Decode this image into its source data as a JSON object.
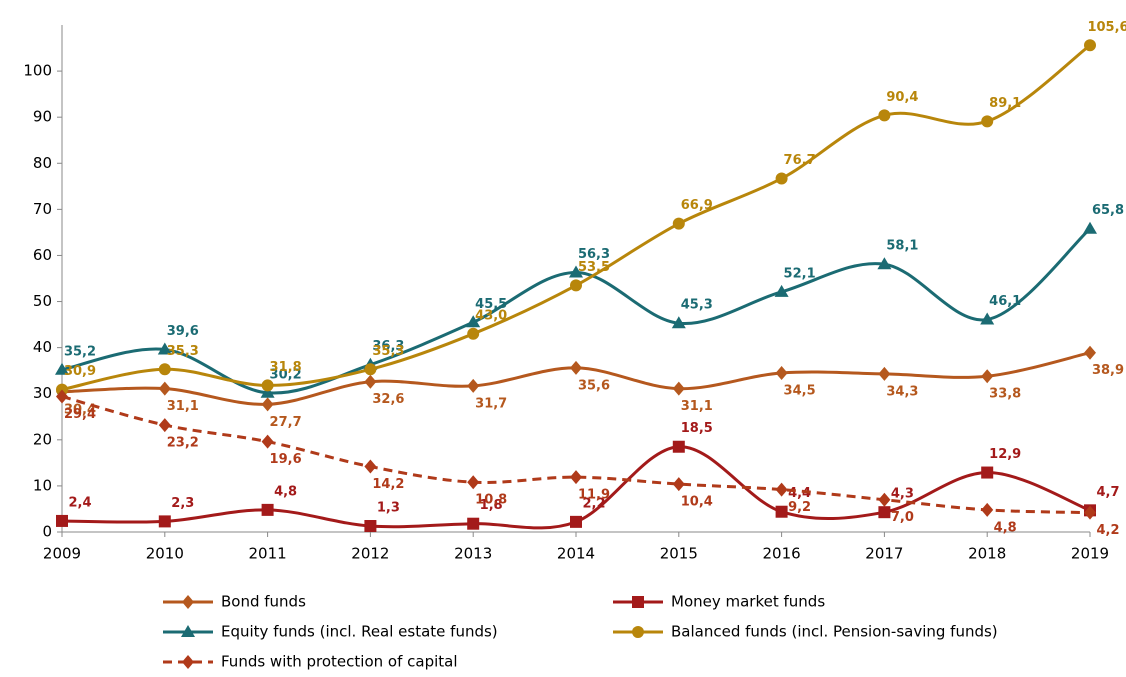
{
  "chart_data": {
    "type": "line",
    "categories": [
      "2009",
      "2010",
      "2011",
      "2012",
      "2013",
      "2014",
      "2015",
      "2016",
      "2017",
      "2018",
      "2019"
    ],
    "ylim": [
      0,
      110
    ],
    "yticks": [
      0,
      10,
      20,
      30,
      40,
      50,
      60,
      70,
      80,
      90,
      100
    ],
    "legend": "bottom",
    "series": [
      {
        "name": "Bond funds",
        "color": "#b5581e",
        "marker": "diamond",
        "dash": false,
        "values": [
          30.4,
          31.1,
          27.7,
          32.6,
          31.7,
          35.6,
          31.1,
          34.5,
          34.3,
          33.8,
          38.9
        ],
        "value_labels": [
          "30,4",
          "31,1",
          "27,7",
          "32,6",
          "31,7",
          "35,6",
          "31,1",
          "34,5",
          "34,3",
          "33,8",
          "38,9"
        ]
      },
      {
        "name": "Money market funds",
        "color": "#a31a1a",
        "marker": "square",
        "dash": false,
        "values": [
          2.4,
          2.3,
          4.8,
          1.3,
          1.8,
          2.2,
          18.5,
          4.4,
          4.3,
          12.9,
          4.7
        ],
        "value_labels": [
          "2,4",
          "2,3",
          "4,8",
          "1,3",
          "1,8",
          "2,2",
          "18,5",
          "4,4",
          "4,3",
          "12,9",
          "4,7"
        ]
      },
      {
        "name": "Equity funds (incl. Real estate funds)",
        "color": "#1b6b73",
        "marker": "triangle",
        "dash": false,
        "values": [
          35.2,
          39.6,
          30.2,
          36.3,
          45.5,
          56.3,
          45.3,
          52.1,
          58.1,
          46.1,
          65.8
        ],
        "value_labels": [
          "35,2",
          "39,6",
          "30,2",
          "36,3",
          "45,5",
          "56,3",
          "45,3",
          "52,1",
          "58,1",
          "46,1",
          "65,8"
        ]
      },
      {
        "name": "Balanced funds (incl. Pension-saving funds)",
        "color": "#b8860b",
        "marker": "circle",
        "dash": false,
        "values": [
          30.9,
          35.3,
          31.8,
          35.3,
          43.0,
          53.5,
          66.9,
          76.7,
          90.4,
          89.1,
          105.6
        ],
        "value_labels": [
          "30,9",
          "35,3",
          "31,8",
          "35,3",
          "43,0",
          "53,5",
          "66,9",
          "76,7",
          "90,4",
          "89,1",
          "105,6"
        ]
      },
      {
        "name": "Funds with protection of capital",
        "color": "#b03a1a",
        "marker": "diamond",
        "dash": true,
        "values": [
          29.4,
          23.2,
          19.6,
          14.2,
          10.8,
          11.9,
          10.4,
          9.2,
          7.0,
          4.8,
          4.2
        ],
        "value_labels": [
          "29,4",
          "23,2",
          "19,6",
          "14,2",
          "10,8",
          "11,9",
          "10,4",
          "9,2",
          "7,0",
          "4,8",
          "4,2"
        ]
      }
    ]
  }
}
